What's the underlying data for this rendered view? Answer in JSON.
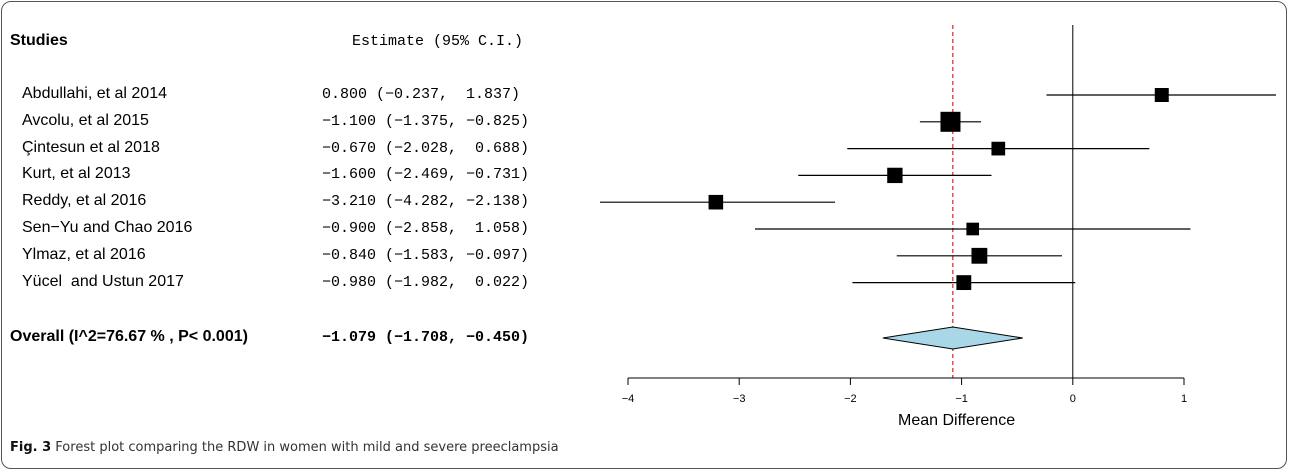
{
  "caption": {
    "label": "Fig. 3",
    "text": "Forest plot comparing the RDW in women with mild and severe preeclampsia"
  },
  "chart_data": {
    "type": "forest",
    "header_studies": "Studies",
    "header_estimate": "Estimate (95% C.I.)",
    "xlabel": "Mean Difference",
    "xlim": [
      -4,
      1
    ],
    "x_ticks": [
      -4,
      -3,
      -2,
      -1,
      0,
      1
    ],
    "x_tick_labels": [
      "−4",
      "−3",
      "−2",
      "−1",
      "0",
      "1"
    ],
    "reference_line": 0,
    "pooled_line": -1.079,
    "studies": [
      {
        "name": "Abdullahi, et al 2014",
        "estimate": 0.8,
        "lower": -0.237,
        "upper": 1.837,
        "weight": 0.5,
        "text": "0.800 (−0.237,  1.837)"
      },
      {
        "name": "Avcolu, et al 2015",
        "estimate": -1.1,
        "lower": -1.375,
        "upper": -0.825,
        "weight": 2.0,
        "text": "−1.100 (−1.375, −0.825)"
      },
      {
        "name": "Çintesun et al 2018",
        "estimate": -0.67,
        "lower": -2.028,
        "upper": 0.688,
        "weight": 0.45,
        "text": "−0.670 (−2.028,  0.688)"
      },
      {
        "name": "Kurt, et al 2013",
        "estimate": -1.6,
        "lower": -2.469,
        "upper": -0.731,
        "weight": 0.75,
        "text": "−1.600 (−2.469, −0.731)"
      },
      {
        "name": "Reddy, et al 2016",
        "estimate": -3.21,
        "lower": -4.282,
        "upper": -2.138,
        "weight": 0.6,
        "text": "−3.210 (−4.282, −2.138)"
      },
      {
        "name": "Sen−Yu and Chao 2016",
        "estimate": -0.9,
        "lower": -2.858,
        "upper": 1.058,
        "weight": 0.3,
        "text": "−0.900 (−2.858,  1.058)"
      },
      {
        "name": "Ylmaz, et al 2016",
        "estimate": -0.84,
        "lower": -1.583,
        "upper": -0.097,
        "weight": 0.85,
        "text": "−0.840 (−1.583, −0.097)"
      },
      {
        "name": "Yücel  and Ustun 2017",
        "estimate": -0.98,
        "lower": -1.982,
        "upper": 0.022,
        "weight": 0.65,
        "text": "−0.980 (−1.982,  0.022)"
      }
    ],
    "overall": {
      "label": "Overall (I^2=76.67 % , P< 0.001)",
      "estimate": -1.079,
      "lower": -1.708,
      "upper": -0.45,
      "text": "−1.079 (−1.708, −0.450)"
    },
    "colors": {
      "diamond_fill": "#a8d8e8",
      "pooled_line": "#e8302a",
      "marks": "#000000"
    }
  }
}
